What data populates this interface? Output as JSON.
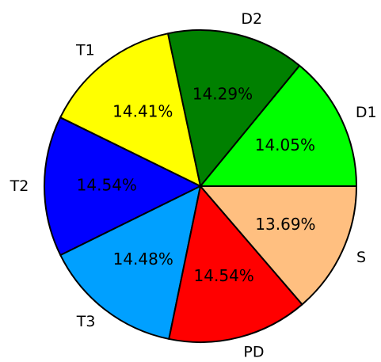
{
  "chart_data": {
    "type": "pie",
    "categories": [
      "D1",
      "D2",
      "T1",
      "T2",
      "T3",
      "PD",
      "S"
    ],
    "values": [
      14.05,
      14.29,
      14.41,
      14.54,
      14.48,
      14.54,
      13.69
    ],
    "value_labels": [
      "14.05%",
      "14.29%",
      "14.41%",
      "14.54%",
      "14.48%",
      "14.54%",
      "13.69%"
    ],
    "colors": [
      "#00ff00",
      "#008000",
      "#ffff00",
      "#0000ff",
      "#00a0ff",
      "#ff0000",
      "#ffbf80"
    ]
  }
}
